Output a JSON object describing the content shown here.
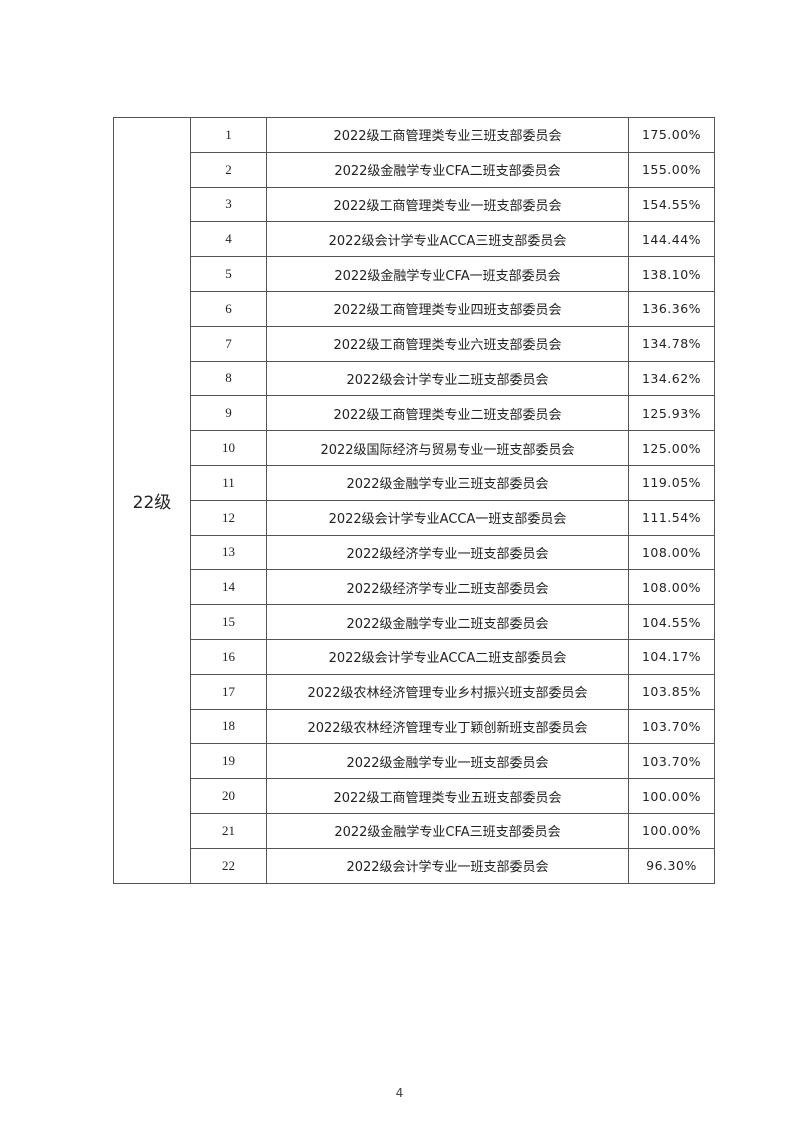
{
  "table": {
    "grade": "22级",
    "rows": [
      {
        "no": "1",
        "name": "2022级工商管理类专业三班支部委员会",
        "pct": "175.00%"
      },
      {
        "no": "2",
        "name": "2022级金融学专业CFA二班支部委员会",
        "pct": "155.00%"
      },
      {
        "no": "3",
        "name": "2022级工商管理类专业一班支部委员会",
        "pct": "154.55%"
      },
      {
        "no": "4",
        "name": "2022级会计学专业ACCA三班支部委员会",
        "pct": "144.44%"
      },
      {
        "no": "5",
        "name": "2022级金融学专业CFA一班支部委员会",
        "pct": "138.10%"
      },
      {
        "no": "6",
        "name": "2022级工商管理类专业四班支部委员会",
        "pct": "136.36%"
      },
      {
        "no": "7",
        "name": "2022级工商管理类专业六班支部委员会",
        "pct": "134.78%"
      },
      {
        "no": "8",
        "name": "2022级会计学专业二班支部委员会",
        "pct": "134.62%"
      },
      {
        "no": "9",
        "name": "2022级工商管理类专业二班支部委员会",
        "pct": "125.93%"
      },
      {
        "no": "10",
        "name": "2022级国际经济与贸易专业一班支部委员会",
        "pct": "125.00%"
      },
      {
        "no": "11",
        "name": "2022级金融学专业三班支部委员会",
        "pct": "119.05%"
      },
      {
        "no": "12",
        "name": "2022级会计学专业ACCA一班支部委员会",
        "pct": "111.54%"
      },
      {
        "no": "13",
        "name": "2022级经济学专业一班支部委员会",
        "pct": "108.00%"
      },
      {
        "no": "14",
        "name": "2022级经济学专业二班支部委员会",
        "pct": "108.00%"
      },
      {
        "no": "15",
        "name": "2022级金融学专业二班支部委员会",
        "pct": "104.55%"
      },
      {
        "no": "16",
        "name": "2022级会计学专业ACCA二班支部委员会",
        "pct": "104.17%"
      },
      {
        "no": "17",
        "name": "2022级农林经济管理专业乡村振兴班支部委员会",
        "pct": "103.85%"
      },
      {
        "no": "18",
        "name": "2022级农林经济管理专业丁颖创新班支部委员会",
        "pct": "103.70%"
      },
      {
        "no": "19",
        "name": "2022级金融学专业一班支部委员会",
        "pct": "103.70%"
      },
      {
        "no": "20",
        "name": "2022级工商管理类专业五班支部委员会",
        "pct": "100.00%"
      },
      {
        "no": "21",
        "name": "2022级金融学专业CFA三班支部委员会",
        "pct": "100.00%"
      },
      {
        "no": "22",
        "name": "2022级会计学专业一班支部委员会",
        "pct": "96.30%"
      }
    ]
  },
  "page_number": "4"
}
